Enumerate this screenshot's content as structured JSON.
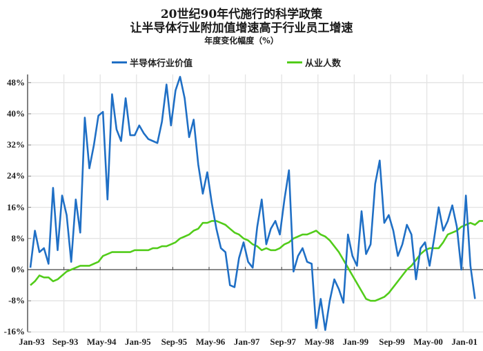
{
  "title": {
    "line1": "20世纪90年代施行的科学政策",
    "line2": "让半导体行业附加值增速高于行业员工增速",
    "subtitle": "年度变化幅度（%）"
  },
  "legend": [
    {
      "label": "半导体行业价值",
      "color": "#1f6fc5"
    },
    {
      "label": "从业人数",
      "color": "#52cc1a"
    }
  ],
  "y_ticks": [
    "48%",
    "40%",
    "32%",
    "24%",
    "16%",
    "8%",
    "0%",
    "-8%",
    "-16%"
  ],
  "x_ticks": [
    "Jan-93",
    "Sep-93",
    "May-94",
    "Jan-95",
    "Sep-95",
    "May-96",
    "Jan-97",
    "Sep-97",
    "May-98",
    "Jan-99",
    "Sep-99",
    "May-00",
    "Jan-01"
  ],
  "chart_data": {
    "type": "line",
    "title": "20世纪90年代施行的科学政策 让半导体行业附加值增速高于行业员工增速",
    "subtitle": "年度变化幅度（%）",
    "xlabel": "",
    "ylabel": "年度变化幅度（%）",
    "ylim": [
      -16,
      50
    ],
    "y_ticks": [
      -16,
      -8,
      0,
      8,
      16,
      24,
      32,
      40,
      48
    ],
    "x_tick_labels": [
      "Jan-93",
      "Sep-93",
      "May-94",
      "Jan-95",
      "Sep-95",
      "May-96",
      "Jan-97",
      "Sep-97",
      "May-98",
      "Jan-99",
      "Sep-99",
      "May-00",
      "Jan-01"
    ],
    "grid": true,
    "legend_position": "top",
    "start_month": "Jan-93",
    "frequency": "monthly",
    "series": [
      {
        "name": "半导体行业价值",
        "color": "#1f6fc5",
        "values": [
          0.5,
          10,
          4.5,
          5.5,
          1.5,
          21,
          5,
          19,
          14,
          2,
          18,
          9.5,
          39,
          26,
          32,
          39.5,
          40.5,
          18,
          45,
          36,
          33,
          44,
          34.5,
          34.5,
          37,
          35,
          33.5,
          33,
          32.5,
          38,
          47.5,
          37,
          46,
          49.5,
          44,
          34,
          38.5,
          27,
          19.5,
          25,
          17,
          10.5,
          5.5,
          4.5,
          -4,
          -4.5,
          3,
          7,
          2,
          0.5,
          11,
          18,
          6.5,
          10.5,
          12.5,
          9,
          18,
          25.5,
          -0.5,
          3.5,
          5.5,
          2,
          1.5,
          -15,
          -7.5,
          -15.5,
          -8,
          -2.5,
          -5,
          -8.5,
          9,
          3.5,
          1,
          15,
          4,
          6.5,
          22,
          28,
          12,
          14,
          10,
          3.5,
          6.5,
          11.5,
          9,
          -2.5,
          5.5,
          7,
          1,
          8,
          16,
          10,
          12.5,
          16.5,
          11,
          0,
          19,
          1,
          -7.5
        ]
      },
      {
        "name": "从业人数",
        "color": "#52cc1a",
        "values": [
          -4,
          -3,
          -1.5,
          -2,
          -2,
          -3,
          -2.5,
          -1.5,
          -0.5,
          0,
          0.5,
          1,
          1,
          1,
          1.5,
          2,
          3.5,
          4,
          4.5,
          4.5,
          4.5,
          4.5,
          4.5,
          5,
          5,
          5,
          5,
          5.5,
          5.5,
          6,
          6,
          6.5,
          7,
          8,
          8.5,
          9,
          10,
          10.5,
          12,
          12,
          12.5,
          12.5,
          12,
          11.5,
          10.5,
          9.5,
          9,
          8,
          7.5,
          6.5,
          6,
          5,
          5.5,
          5,
          5,
          5.5,
          6.5,
          7,
          8,
          8.5,
          9,
          9,
          9.5,
          10,
          9,
          8.5,
          7.5,
          6,
          4.5,
          2.5,
          0.5,
          -1.5,
          -3.5,
          -5.5,
          -7.5,
          -8,
          -8,
          -7.5,
          -7,
          -6,
          -4.5,
          -3,
          -1.5,
          0,
          1,
          2.5,
          4,
          5,
          5.5,
          5.5,
          5.5,
          7,
          9,
          9.5,
          10,
          11,
          11.5,
          12,
          11.5,
          12.5,
          12.5,
          12.5
        ]
      }
    ]
  }
}
